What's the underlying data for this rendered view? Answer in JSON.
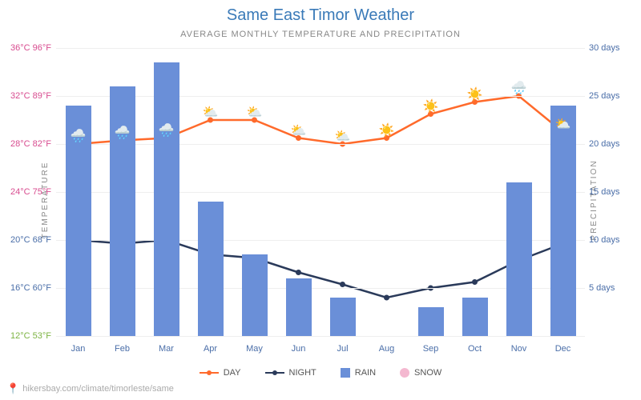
{
  "title": "Same East Timor Weather",
  "subtitle": "AVERAGE MONTHLY TEMPERATURE AND PRECIPITATION",
  "axes": {
    "left_label": "TEMPERATURE",
    "right_label": "PRECIPITATION",
    "temp_min_c": 12,
    "temp_max_c": 36,
    "precip_min_days": 0,
    "precip_max_days": 30,
    "left_ticks": [
      {
        "c": "12°C",
        "f": "53°F",
        "v": 12,
        "color": "#7cb342"
      },
      {
        "c": "16°C",
        "f": "60°F",
        "v": 16,
        "color": "#4a6ea8"
      },
      {
        "c": "20°C",
        "f": "68°F",
        "v": 20,
        "color": "#4a6ea8"
      },
      {
        "c": "24°C",
        "f": "75°F",
        "v": 24,
        "color": "#d84b8f"
      },
      {
        "c": "28°C",
        "f": "82°F",
        "v": 28,
        "color": "#d84b8f"
      },
      {
        "c": "32°C",
        "f": "89°F",
        "v": 32,
        "color": "#d84b8f"
      },
      {
        "c": "36°C",
        "f": "96°F",
        "v": 36,
        "color": "#d84b8f"
      }
    ],
    "right_ticks": [
      {
        "label": "5 days",
        "v": 5
      },
      {
        "label": "10 days",
        "v": 10
      },
      {
        "label": "15 days",
        "v": 15
      },
      {
        "label": "20 days",
        "v": 20
      },
      {
        "label": "25 days",
        "v": 25
      },
      {
        "label": "30 days",
        "v": 30
      }
    ],
    "months": [
      "Jan",
      "Feb",
      "Mar",
      "Apr",
      "May",
      "Jun",
      "Jul",
      "Aug",
      "Sep",
      "Oct",
      "Nov",
      "Dec"
    ]
  },
  "data": {
    "day_temp": [
      28,
      28.3,
      28.5,
      30,
      30,
      28.5,
      28,
      28.5,
      30.5,
      31.5,
      32,
      29
    ],
    "night_temp": [
      20,
      19.7,
      20,
      18.8,
      18.5,
      17.3,
      16.3,
      15.2,
      16,
      16.5,
      18.3,
      19.7
    ],
    "rain_days": [
      24,
      26,
      28.5,
      14,
      8.5,
      6,
      4,
      0,
      3,
      4,
      16,
      24
    ],
    "weather_icons": [
      "🌧️",
      "🌧️",
      "🌧️",
      "⛅",
      "⛅",
      "⛅",
      "⛅",
      "☀️",
      "☀️",
      "☀️",
      "🌧️",
      "⛅"
    ]
  },
  "colors": {
    "day_line": "#ff6a2b",
    "night_line": "#2a3a5a",
    "rain_bar": "#6a8fd8",
    "snow": "#f4b8d0",
    "grid": "#eeeeee",
    "title": "#3a7ab8",
    "x_tick": "#4a6ea8"
  },
  "legend": {
    "day": "DAY",
    "night": "NIGHT",
    "rain": "RAIN",
    "snow": "SNOW"
  },
  "footer": {
    "url": "hikersbay.com/climate/timorleste/same"
  }
}
